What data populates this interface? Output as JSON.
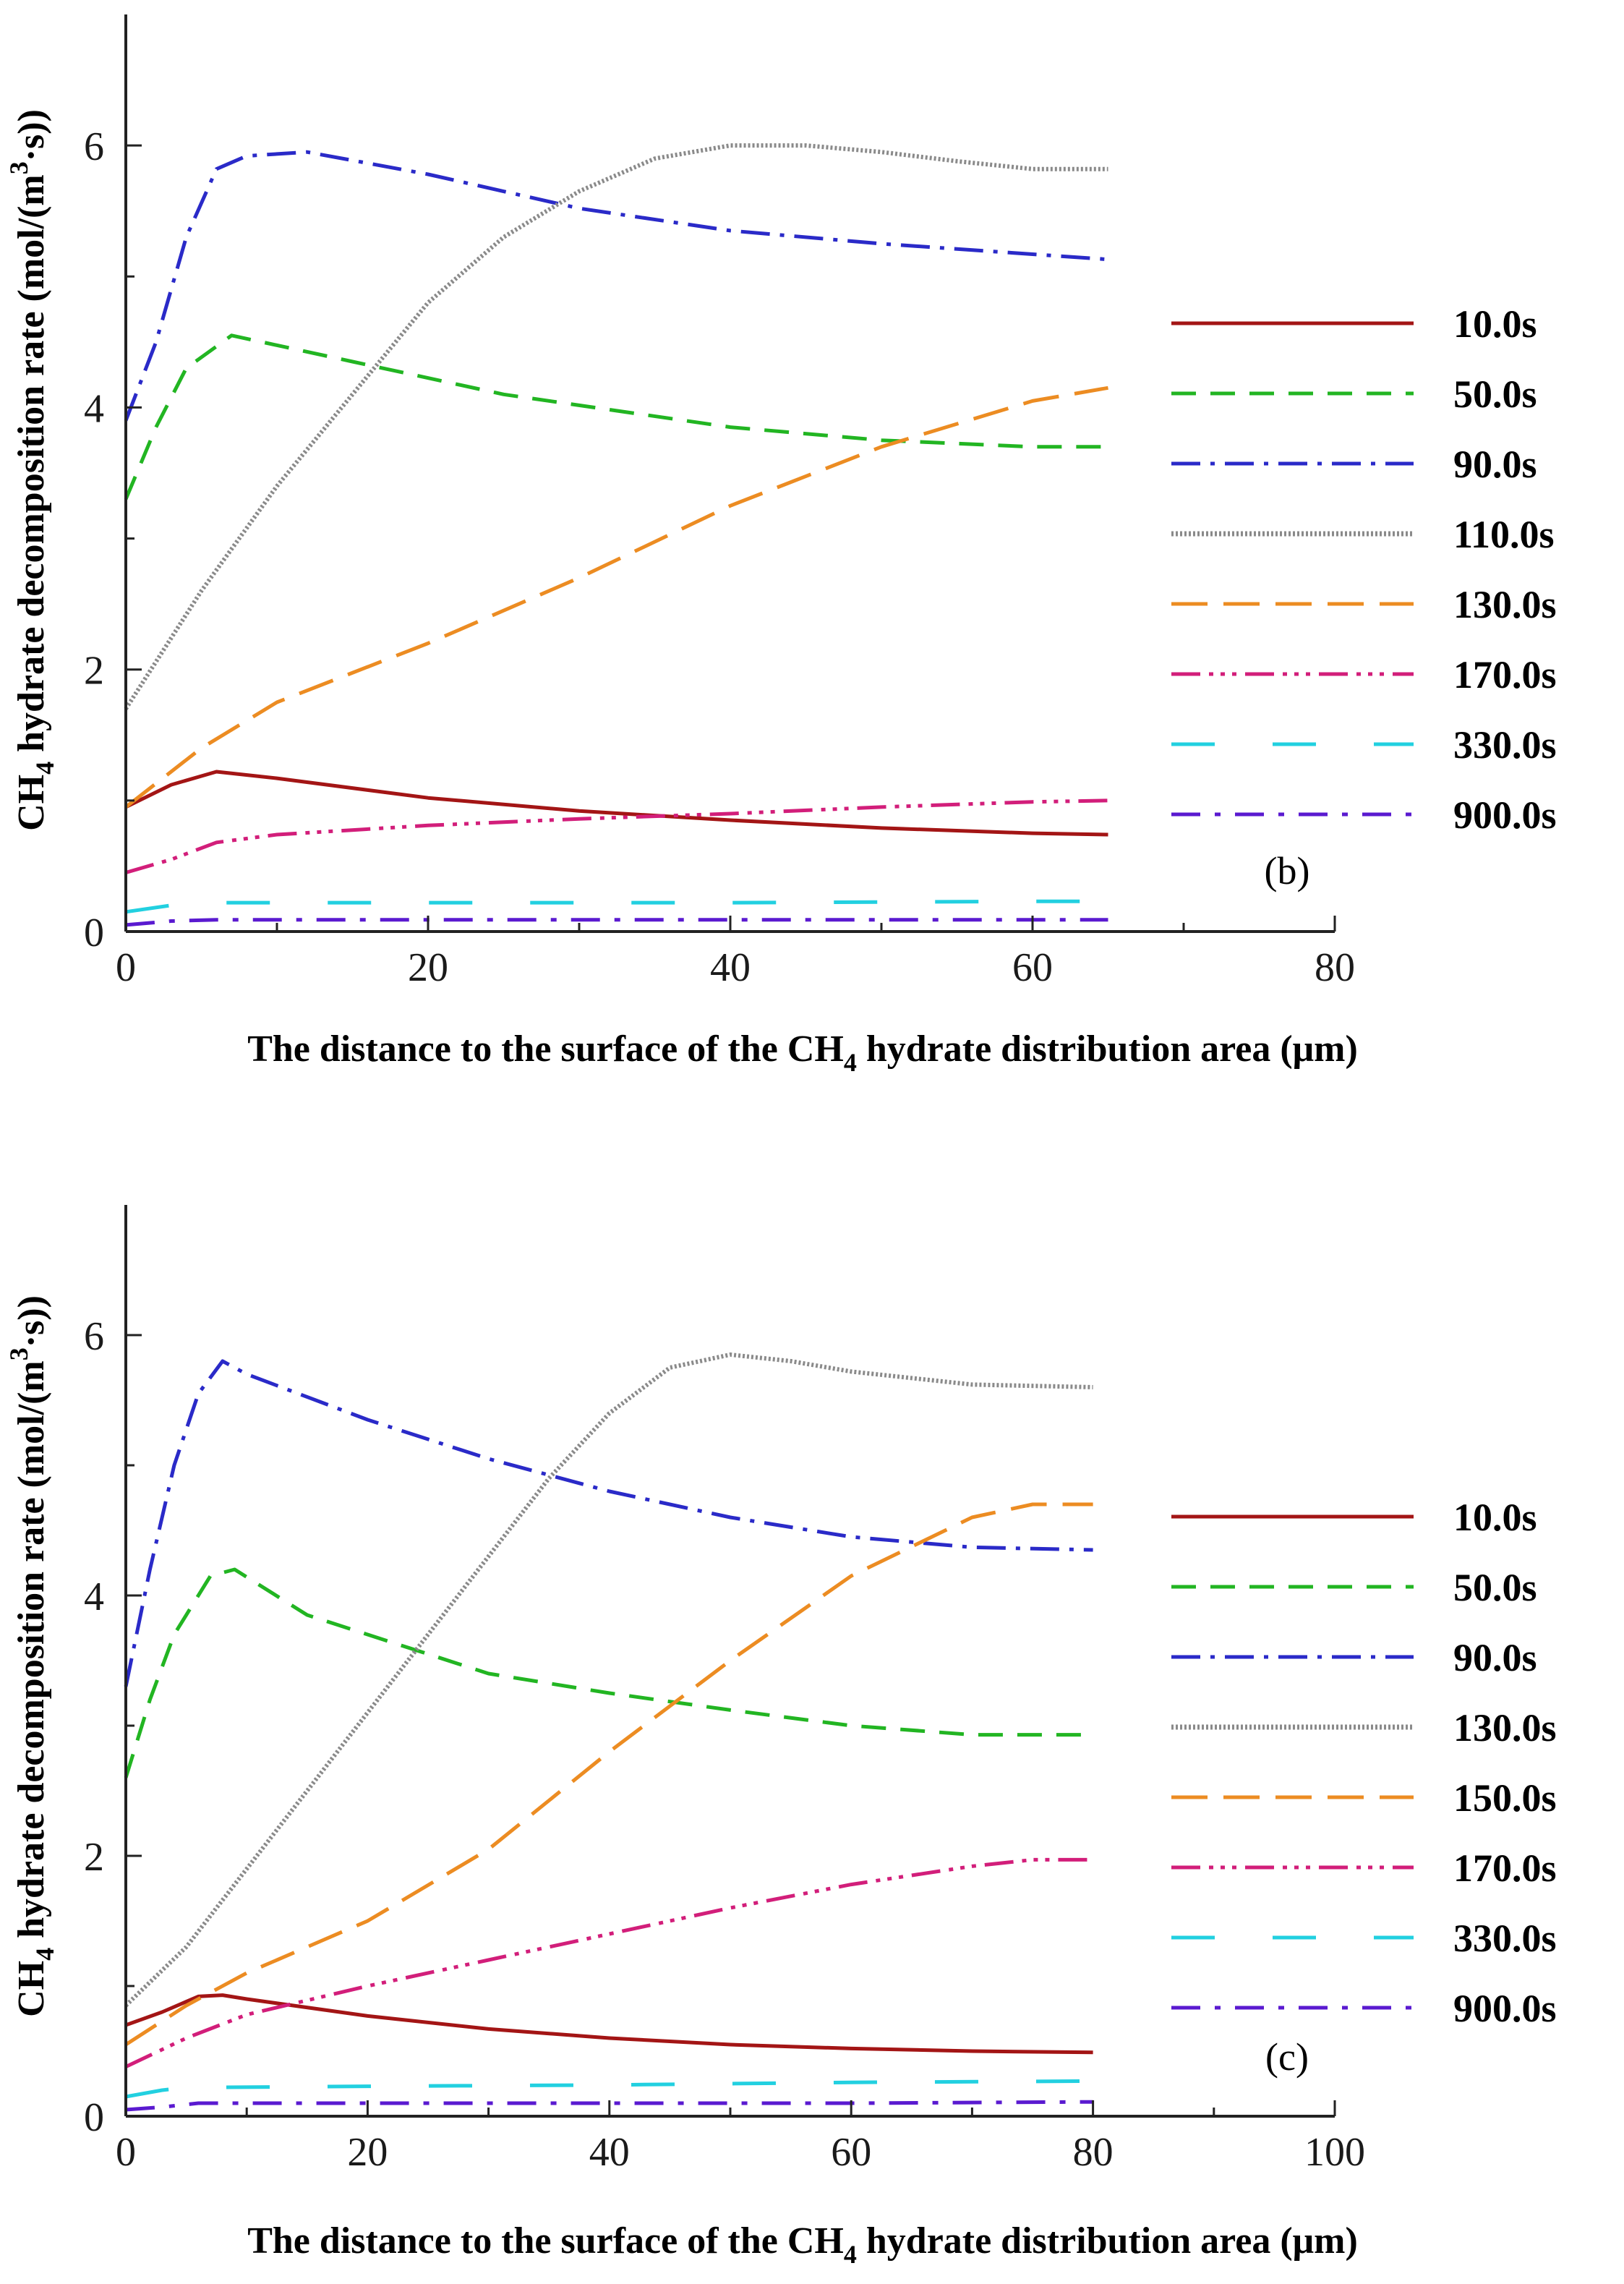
{
  "chart_data": [
    {
      "type": "line",
      "panel_label": "(b)",
      "xlabel_parts": [
        "The distance to the surface of the CH",
        "4",
        " hydrate distribution area (μm)"
      ],
      "ylabel_parts": [
        "CH",
        "4",
        " hydrate decomposition rate (mol/(m",
        "3",
        "·s))"
      ],
      "xlim": [
        0,
        80
      ],
      "ylim": [
        0,
        7
      ],
      "xticks": [
        0,
        20,
        40,
        60,
        80
      ],
      "yticks": [
        0,
        2,
        4,
        6
      ],
      "series": [
        {
          "name": "10.0s",
          "color": "#a31515",
          "dash": "",
          "points": [
            [
              0,
              0.95
            ],
            [
              3,
              1.12
            ],
            [
              6,
              1.22
            ],
            [
              10,
              1.17
            ],
            [
              20,
              1.02
            ],
            [
              30,
              0.92
            ],
            [
              40,
              0.85
            ],
            [
              50,
              0.79
            ],
            [
              60,
              0.75
            ],
            [
              65,
              0.74
            ]
          ]
        },
        {
          "name": "50.0s",
          "color": "#22b522",
          "dash": "34,20",
          "points": [
            [
              0,
              3.3
            ],
            [
              2,
              3.85
            ],
            [
              4,
              4.3
            ],
            [
              7,
              4.55
            ],
            [
              15,
              4.35
            ],
            [
              25,
              4.1
            ],
            [
              40,
              3.85
            ],
            [
              50,
              3.75
            ],
            [
              60,
              3.7
            ],
            [
              65,
              3.7
            ]
          ]
        },
        {
          "name": "90.0s",
          "color": "#2a2ac8",
          "dash": "40,14,6,14",
          "points": [
            [
              0,
              3.9
            ],
            [
              2,
              4.5
            ],
            [
              4,
              5.3
            ],
            [
              6,
              5.82
            ],
            [
              8,
              5.92
            ],
            [
              12,
              5.95
            ],
            [
              20,
              5.78
            ],
            [
              30,
              5.52
            ],
            [
              40,
              5.35
            ],
            [
              50,
              5.25
            ],
            [
              60,
              5.17
            ],
            [
              65,
              5.13
            ]
          ]
        },
        {
          "name": "110.0s",
          "color": "#8a8a8a",
          "dash": "3,3",
          "points": [
            [
              0,
              1.7
            ],
            [
              5,
              2.6
            ],
            [
              10,
              3.4
            ],
            [
              15,
              4.1
            ],
            [
              20,
              4.8
            ],
            [
              25,
              5.3
            ],
            [
              30,
              5.65
            ],
            [
              35,
              5.9
            ],
            [
              40,
              6.0
            ],
            [
              45,
              6.0
            ],
            [
              50,
              5.95
            ],
            [
              55,
              5.88
            ],
            [
              60,
              5.82
            ],
            [
              65,
              5.82
            ]
          ]
        },
        {
          "name": "130.0s",
          "color": "#ec8c22",
          "dash": "50,22",
          "points": [
            [
              0,
              0.95
            ],
            [
              5,
              1.4
            ],
            [
              10,
              1.75
            ],
            [
              20,
              2.2
            ],
            [
              30,
              2.7
            ],
            [
              40,
              3.25
            ],
            [
              50,
              3.7
            ],
            [
              60,
              4.05
            ],
            [
              65,
              4.15
            ]
          ]
        },
        {
          "name": "170.0s",
          "color": "#d21e7a",
          "dash": "40,12,6,10,6,10,6,12",
          "points": [
            [
              0,
              0.45
            ],
            [
              3,
              0.55
            ],
            [
              6,
              0.68
            ],
            [
              10,
              0.74
            ],
            [
              20,
              0.81
            ],
            [
              30,
              0.86
            ],
            [
              40,
              0.9
            ],
            [
              50,
              0.95
            ],
            [
              60,
              0.99
            ],
            [
              65,
              1.0
            ]
          ]
        },
        {
          "name": "330.0s",
          "color": "#22d0e0",
          "dash": "60,80",
          "points": [
            [
              0,
              0.15
            ],
            [
              3,
              0.2
            ],
            [
              6,
              0.22
            ],
            [
              20,
              0.22
            ],
            [
              40,
              0.22
            ],
            [
              60,
              0.23
            ],
            [
              65,
              0.23
            ]
          ]
        },
        {
          "name": "900.0s",
          "color": "#5a1ad0",
          "dash": "40,20,8,20",
          "points": [
            [
              0,
              0.05
            ],
            [
              3,
              0.08
            ],
            [
              6,
              0.09
            ],
            [
              20,
              0.09
            ],
            [
              40,
              0.09
            ],
            [
              60,
              0.09
            ],
            [
              65,
              0.09
            ]
          ]
        }
      ]
    },
    {
      "type": "line",
      "panel_label": "(c)",
      "xlabel_parts": [
        "The distance to the surface of the CH",
        "4",
        " hydrate distribution area (μm)"
      ],
      "ylabel_parts": [
        "CH",
        "4",
        " hydrate decomposition rate (mol/(m",
        "3",
        "·s))"
      ],
      "xlim": [
        0,
        100
      ],
      "ylim": [
        0,
        7
      ],
      "xticks": [
        0,
        20,
        40,
        60,
        80,
        100
      ],
      "yticks": [
        0,
        2,
        4,
        6
      ],
      "series": [
        {
          "name": "10.0s",
          "color": "#a31515",
          "dash": "",
          "points": [
            [
              0,
              0.7
            ],
            [
              3,
              0.8
            ],
            [
              6,
              0.92
            ],
            [
              8,
              0.93
            ],
            [
              10,
              0.9
            ],
            [
              20,
              0.77
            ],
            [
              30,
              0.67
            ],
            [
              40,
              0.6
            ],
            [
              50,
              0.55
            ],
            [
              60,
              0.52
            ],
            [
              70,
              0.5
            ],
            [
              80,
              0.49
            ]
          ]
        },
        {
          "name": "50.0s",
          "color": "#22b522",
          "dash": "34,20",
          "points": [
            [
              0,
              2.6
            ],
            [
              2,
              3.2
            ],
            [
              4,
              3.7
            ],
            [
              7,
              4.15
            ],
            [
              9,
              4.2
            ],
            [
              15,
              3.85
            ],
            [
              20,
              3.7
            ],
            [
              30,
              3.4
            ],
            [
              40,
              3.25
            ],
            [
              50,
              3.12
            ],
            [
              60,
              3.0
            ],
            [
              70,
              2.93
            ],
            [
              80,
              2.93
            ]
          ]
        },
        {
          "name": "90.0s",
          "color": "#2a2ac8",
          "dash": "40,14,6,14",
          "points": [
            [
              0,
              3.3
            ],
            [
              2,
              4.2
            ],
            [
              4,
              5.0
            ],
            [
              6,
              5.55
            ],
            [
              8,
              5.8
            ],
            [
              10,
              5.7
            ],
            [
              20,
              5.35
            ],
            [
              30,
              5.05
            ],
            [
              40,
              4.8
            ],
            [
              50,
              4.6
            ],
            [
              60,
              4.45
            ],
            [
              70,
              4.37
            ],
            [
              80,
              4.35
            ]
          ]
        },
        {
          "name": "130.0s",
          "color": "#8a8a8a",
          "dash": "3,3",
          "points": [
            [
              0,
              0.85
            ],
            [
              5,
              1.3
            ],
            [
              10,
              1.9
            ],
            [
              15,
              2.5
            ],
            [
              20,
              3.1
            ],
            [
              25,
              3.7
            ],
            [
              30,
              4.3
            ],
            [
              35,
              4.9
            ],
            [
              40,
              5.4
            ],
            [
              45,
              5.75
            ],
            [
              50,
              5.85
            ],
            [
              55,
              5.8
            ],
            [
              60,
              5.72
            ],
            [
              70,
              5.62
            ],
            [
              80,
              5.6
            ]
          ]
        },
        {
          "name": "150.0s",
          "color": "#ec8c22",
          "dash": "50,22",
          "points": [
            [
              0,
              0.55
            ],
            [
              5,
              0.85
            ],
            [
              10,
              1.1
            ],
            [
              20,
              1.5
            ],
            [
              30,
              2.05
            ],
            [
              40,
              2.8
            ],
            [
              50,
              3.5
            ],
            [
              60,
              4.15
            ],
            [
              70,
              4.6
            ],
            [
              75,
              4.7
            ],
            [
              80,
              4.7
            ]
          ]
        },
        {
          "name": "170.0s",
          "color": "#d21e7a",
          "dash": "40,12,6,10,6,10,6,12",
          "points": [
            [
              0,
              0.38
            ],
            [
              5,
              0.6
            ],
            [
              10,
              0.78
            ],
            [
              20,
              1.0
            ],
            [
              30,
              1.2
            ],
            [
              40,
              1.4
            ],
            [
              50,
              1.6
            ],
            [
              60,
              1.78
            ],
            [
              70,
              1.92
            ],
            [
              75,
              1.97
            ],
            [
              80,
              1.97
            ]
          ]
        },
        {
          "name": "330.0s",
          "color": "#22d0e0",
          "dash": "60,80",
          "points": [
            [
              0,
              0.15
            ],
            [
              3,
              0.2
            ],
            [
              5,
              0.22
            ],
            [
              20,
              0.23
            ],
            [
              40,
              0.24
            ],
            [
              60,
              0.26
            ],
            [
              80,
              0.27
            ]
          ]
        },
        {
          "name": "900.0s",
          "color": "#5a1ad0",
          "dash": "40,20,8,20",
          "points": [
            [
              0,
              0.05
            ],
            [
              3,
              0.07
            ],
            [
              6,
              0.1
            ],
            [
              20,
              0.1
            ],
            [
              40,
              0.1
            ],
            [
              60,
              0.1
            ],
            [
              80,
              0.11
            ]
          ]
        }
      ]
    }
  ]
}
